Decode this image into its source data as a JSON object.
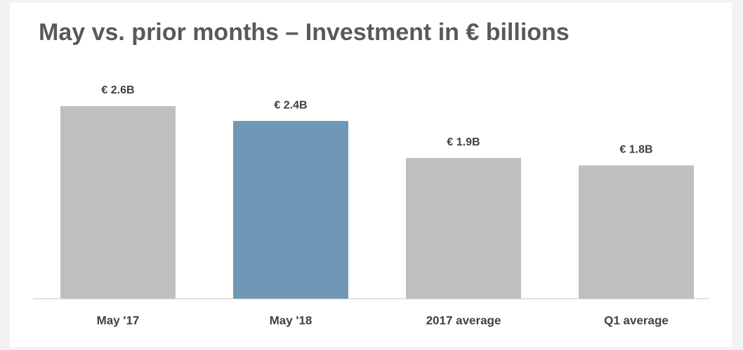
{
  "chart_data": {
    "type": "bar",
    "title": "May vs. prior months – Investment in € billions",
    "categories": [
      "May '17",
      "May '18",
      "2017 average",
      "Q1 average"
    ],
    "values": [
      2.6,
      2.4,
      1.9,
      1.8
    ],
    "value_labels": [
      "€ 2.6B",
      "€ 2.4B",
      "€ 1.9B",
      "€ 1.8B"
    ],
    "colors": [
      "#bfbfbf",
      "#7098b6",
      "#bfbfbf",
      "#bfbfbf"
    ]
  }
}
